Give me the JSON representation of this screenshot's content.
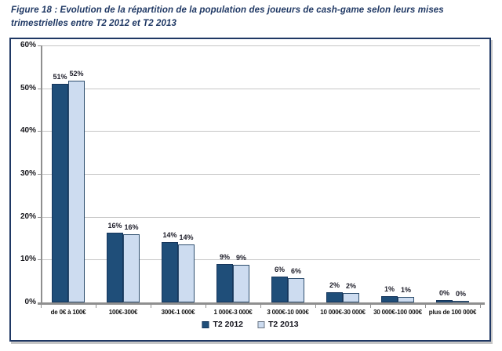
{
  "figure_title": "Figure 18 : Evolution de la répartition de la population des joueurs de cash-game selon leurs mises trimestrielles entre T2 2012 et T2 2013",
  "colors": {
    "title_text": "#1F3864",
    "chart_border": "#1F3864",
    "series_2012": "#1F4E79",
    "series_2013": "#CDDCF0",
    "gridline": "#C6C6C6",
    "axis": "#8F8F8F"
  },
  "chart_data": {
    "type": "bar",
    "title": "",
    "xlabel": "",
    "ylabel": "",
    "categories": [
      "de 0€ à 100€",
      "100€-300€",
      "300€-1 000€",
      "1 000€-3 000€",
      "3 000€-10 000€",
      "10 000€-30 000€",
      "30 000€-100 000€",
      "plus de 100 000€"
    ],
    "series": [
      {
        "name": "T2 2012",
        "color": "#1F4E79",
        "border_color": "#16365C",
        "values": [
          51,
          16,
          14,
          9,
          6,
          2,
          1,
          0
        ],
        "labels": [
          "51%",
          "16%",
          "14%",
          "9%",
          "6%",
          "2%",
          "1%",
          "0%"
        ],
        "bar_heights_pct": [
          51,
          16.2,
          14,
          9,
          6,
          2.4,
          1.5,
          0.5
        ]
      },
      {
        "name": "T2 2013",
        "color": "#CDDCF0",
        "border_color": "#2E4E6E",
        "values": [
          52,
          16,
          14,
          9,
          6,
          2,
          1,
          0
        ],
        "labels": [
          "52%",
          "16%",
          "14%",
          "9%",
          "6%",
          "2%",
          "1%",
          "0%"
        ],
        "bar_heights_pct": [
          51.8,
          15.9,
          13.5,
          8.8,
          5.7,
          2.2,
          1.2,
          0.3
        ]
      }
    ],
    "ylim": [
      0,
      60
    ],
    "yticks": [
      "0%",
      "10%",
      "20%",
      "30%",
      "40%",
      "50%",
      "60%"
    ],
    "grid": true,
    "legend_position": "bottom"
  }
}
